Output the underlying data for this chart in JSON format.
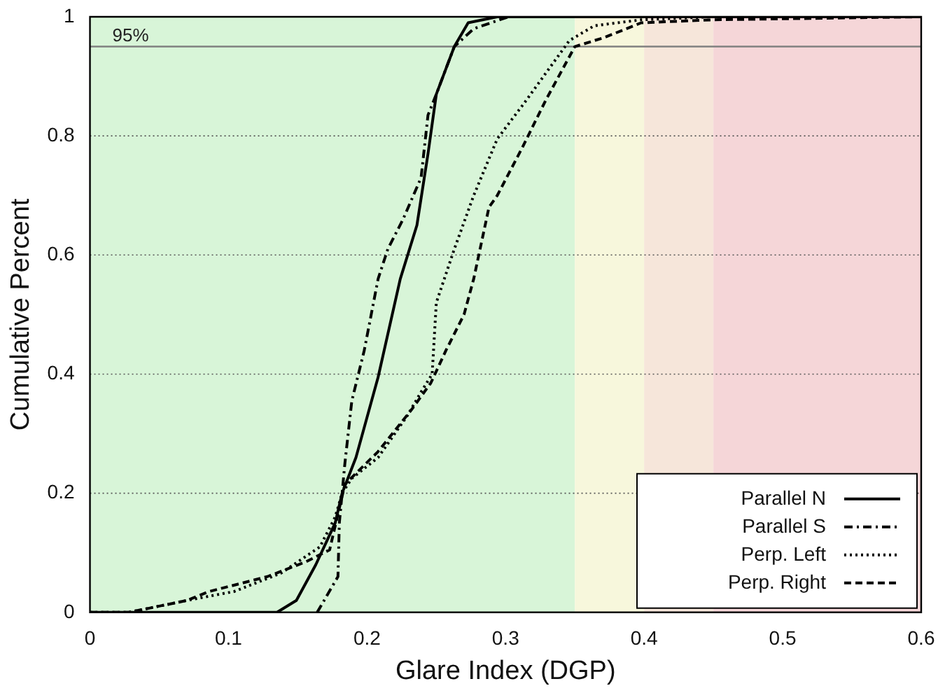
{
  "chart_data": {
    "type": "line",
    "xlabel": "Glare Index (DGP)",
    "ylabel": "Cumulative Percent",
    "xlim": [
      0,
      0.6
    ],
    "ylim": [
      0,
      1
    ],
    "xticks": [
      0,
      0.1,
      0.2,
      0.3,
      0.4,
      0.5,
      0.6
    ],
    "yticks": [
      0,
      0.2,
      0.4,
      0.6,
      0.8,
      1
    ],
    "grid": "y",
    "legend": "bottom right",
    "marker": "none",
    "series": [
      {
        "name": "Parallel N",
        "color": "#000000",
        "line_style": "solid",
        "x": [
          0,
          0.135,
          0.149,
          0.163,
          0.177,
          0.182,
          0.192,
          0.208,
          0.224,
          0.236,
          0.244,
          0.25,
          0.263,
          0.273,
          0.294,
          0.6
        ],
        "values": [
          0,
          0,
          0.02,
          0.08,
          0.15,
          0.2,
          0.26,
          0.395,
          0.56,
          0.65,
          0.77,
          0.87,
          0.95,
          0.99,
          1,
          1
        ]
      },
      {
        "name": "Parallel S",
        "color": "#000000",
        "line_style": "dashdot",
        "x": [
          0.164,
          0.179,
          0.18,
          0.184,
          0.189,
          0.198,
          0.208,
          0.215,
          0.226,
          0.239,
          0.244,
          0.25,
          0.263,
          0.277,
          0.302,
          0.6
        ],
        "values": [
          0,
          0.06,
          0.15,
          0.25,
          0.355,
          0.44,
          0.56,
          0.61,
          0.66,
          0.73,
          0.835,
          0.87,
          0.95,
          0.98,
          1,
          1
        ]
      },
      {
        "name": "Perp. Left",
        "color": "#000000",
        "line_style": "dotted",
        "x": [
          0,
          0.028,
          0.07,
          0.104,
          0.138,
          0.166,
          0.177,
          0.182,
          0.189,
          0.208,
          0.229,
          0.239,
          0.247,
          0.25,
          0.263,
          0.277,
          0.294,
          0.315,
          0.346,
          0.364,
          0.398,
          0.45,
          0.6
        ],
        "values": [
          0,
          0,
          0.02,
          0.035,
          0.066,
          0.11,
          0.16,
          0.2,
          0.225,
          0.26,
          0.33,
          0.37,
          0.4,
          0.52,
          0.61,
          0.7,
          0.795,
          0.86,
          0.96,
          0.985,
          0.995,
          1,
          1
        ]
      },
      {
        "name": "Perp. Right",
        "color": "#000000",
        "line_style": "dashed",
        "x": [
          0,
          0.028,
          0.07,
          0.086,
          0.128,
          0.156,
          0.173,
          0.184,
          0.208,
          0.232,
          0.246,
          0.257,
          0.27,
          0.277,
          0.288,
          0.294,
          0.312,
          0.329,
          0.35,
          0.371,
          0.398,
          0.45,
          0.6
        ],
        "values": [
          0,
          0,
          0.02,
          0.035,
          0.06,
          0.085,
          0.105,
          0.215,
          0.27,
          0.34,
          0.385,
          0.44,
          0.5,
          0.56,
          0.68,
          0.7,
          0.78,
          0.86,
          0.95,
          0.965,
          0.99,
          0.995,
          1
        ]
      }
    ],
    "bands": [
      {
        "axis": "x",
        "from": 0,
        "to": 0.35,
        "color": "#d8f5d8"
      },
      {
        "axis": "x",
        "from": 0.35,
        "to": 0.4,
        "color": "#f7f7dc"
      },
      {
        "axis": "x",
        "from": 0.4,
        "to": 0.45,
        "color": "#f6e6da"
      },
      {
        "axis": "x",
        "from": 0.45,
        "to": 0.6,
        "color": "#f5d6d8"
      }
    ],
    "ref_lines": [
      {
        "axis": "y",
        "value": 0.95,
        "label": "95%",
        "color": "#808080"
      }
    ]
  }
}
